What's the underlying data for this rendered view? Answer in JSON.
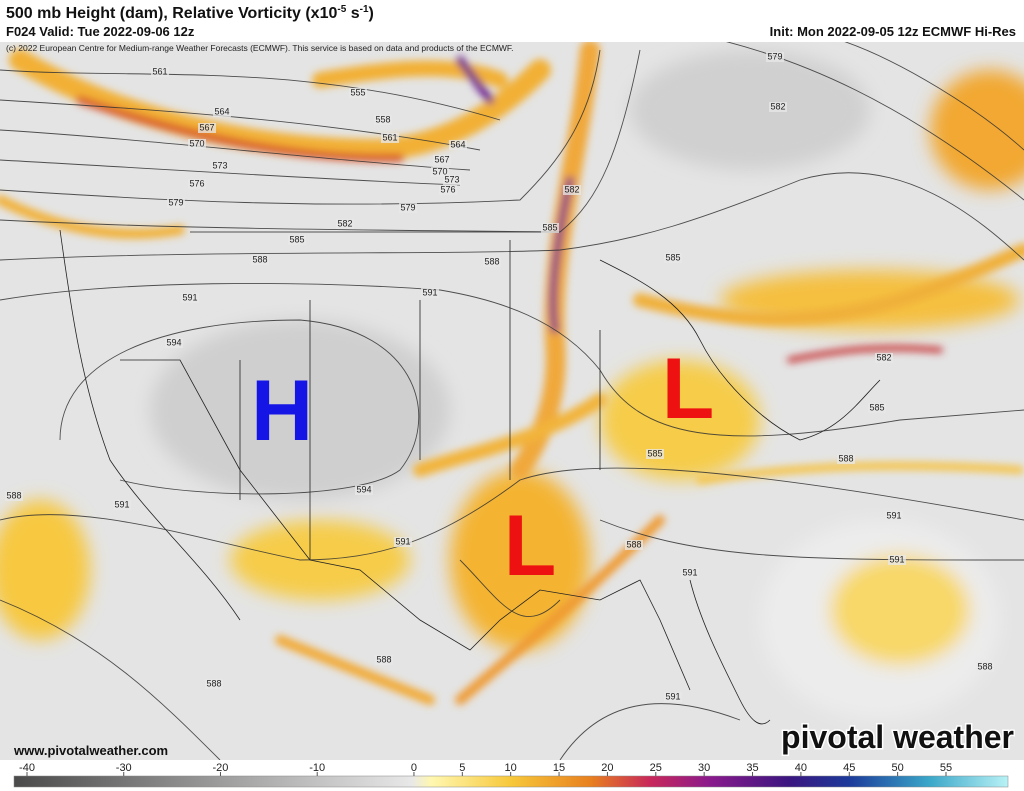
{
  "header": {
    "title": "500 mb Height (dam), Relative Vorticity (x10",
    "title_exp": "-5",
    "title_unit": " s",
    "title_unit_exp": "-1",
    "title_close": ")",
    "valid": "F024 Valid: Tue 2022-09-06 12z",
    "init": "Init: Mon 2022-09-05 12z ECMWF Hi-Res",
    "copyright": "(c) 2022 European Centre for Medium-range Weather Forecasts (ECMWF). This service is based on data and products of the ECMWF."
  },
  "map": {
    "contour_labels": [
      "561",
      "555",
      "558",
      "564",
      "567",
      "561",
      "564",
      "570",
      "567",
      "570",
      "573",
      "573",
      "576",
      "576",
      "579",
      "579",
      "582",
      "582",
      "579",
      "582",
      "585",
      "585",
      "585",
      "588",
      "588",
      "591",
      "591",
      "594",
      "594",
      "591",
      "591",
      "588",
      "585",
      "588",
      "582",
      "585",
      "591",
      "591",
      "588",
      "591",
      "588",
      "588",
      "591",
      "588"
    ],
    "pressure_centers": [
      {
        "label": "H",
        "color": "#1515e6"
      },
      {
        "label": "L",
        "color": "#ee1111"
      },
      {
        "label": "L",
        "color": "#ee1111"
      }
    ],
    "url": "www.pivotalweather.com",
    "logo": "pivotal weather"
  },
  "colorbar": {
    "ticks": [
      -40,
      -30,
      -20,
      -10,
      0,
      5,
      10,
      15,
      20,
      25,
      30,
      35,
      40,
      45,
      50,
      55
    ]
  }
}
